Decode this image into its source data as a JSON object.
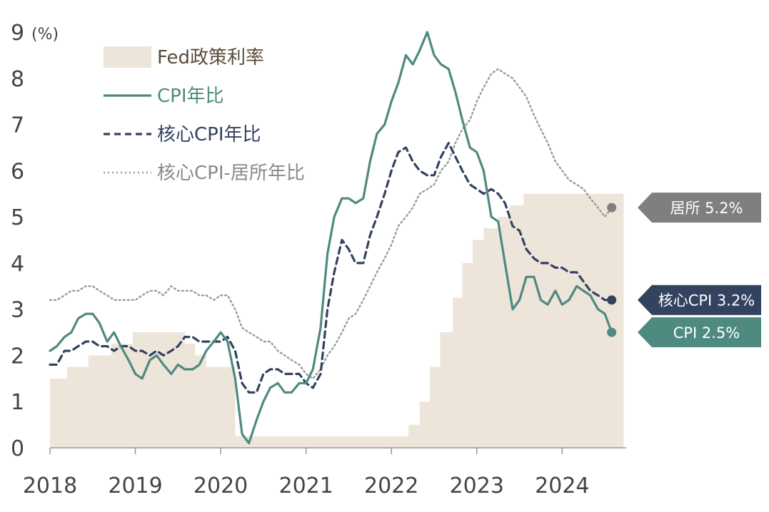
{
  "chart_data": {
    "type": "line",
    "ylabel": "(%)",
    "ylim": [
      0,
      9
    ],
    "y_ticks": [
      "0",
      "1",
      "2",
      "3",
      "4",
      "5",
      "6",
      "7",
      "8",
      "9"
    ],
    "x_ticks": [
      "2018",
      "2019",
      "2020",
      "2021",
      "2022",
      "2023",
      "2024"
    ],
    "xlim": [
      2018.0,
      2024.75
    ],
    "legend": [
      {
        "key": "fed",
        "label": "Fed政策利率",
        "color": "#ede4da",
        "style": "area",
        "text_color": "#5a4a3a"
      },
      {
        "key": "cpi",
        "label": "CPI年比",
        "color": "#4e8a80",
        "style": "solid",
        "text_color": "#4e8a80"
      },
      {
        "key": "core",
        "label": "核心CPI年比",
        "color": "#33425f",
        "style": "dashed",
        "text_color": "#33425f"
      },
      {
        "key": "shelter",
        "label": "核心CPI-居所年比",
        "color": "#9a9a9a",
        "style": "dotted",
        "text_color": "#8a8a8a"
      }
    ],
    "callouts": [
      {
        "key": "shelter",
        "label": "居所 5.2%",
        "value": 5.2,
        "color": "#7f7f7f"
      },
      {
        "key": "core",
        "label": "核心CPI 3.2%",
        "value": 3.2,
        "color": "#33425f"
      },
      {
        "key": "cpi",
        "label": "CPI 2.5%",
        "value": 2.5,
        "color": "#4e8a80"
      }
    ],
    "fed_steps": [
      {
        "x": 2018.0,
        "y": 1.5
      },
      {
        "x": 2018.2,
        "y": 1.75
      },
      {
        "x": 2018.45,
        "y": 2.0
      },
      {
        "x": 2018.72,
        "y": 2.25
      },
      {
        "x": 2018.97,
        "y": 2.5
      },
      {
        "x": 2019.58,
        "y": 2.25
      },
      {
        "x": 2019.7,
        "y": 2.0
      },
      {
        "x": 2019.83,
        "y": 1.75
      },
      {
        "x": 2020.17,
        "y": 0.25
      },
      {
        "x": 2022.2,
        "y": 0.5
      },
      {
        "x": 2022.33,
        "y": 1.0
      },
      {
        "x": 2022.45,
        "y": 1.75
      },
      {
        "x": 2022.57,
        "y": 2.5
      },
      {
        "x": 2022.72,
        "y": 3.25
      },
      {
        "x": 2022.83,
        "y": 4.0
      },
      {
        "x": 2022.95,
        "y": 4.5
      },
      {
        "x": 2023.08,
        "y": 4.75
      },
      {
        "x": 2023.25,
        "y": 5.0
      },
      {
        "x": 2023.38,
        "y": 5.25
      },
      {
        "x": 2023.55,
        "y": 5.5
      },
      {
        "x": 2024.72,
        "y": 5.5
      }
    ],
    "series": [
      {
        "key": "cpi",
        "name": "CPI年比",
        "points": [
          [
            2018.0,
            2.1
          ],
          [
            2018.08,
            2.2
          ],
          [
            2018.17,
            2.4
          ],
          [
            2018.25,
            2.5
          ],
          [
            2018.33,
            2.8
          ],
          [
            2018.42,
            2.9
          ],
          [
            2018.5,
            2.9
          ],
          [
            2018.58,
            2.7
          ],
          [
            2018.67,
            2.3
          ],
          [
            2018.75,
            2.5
          ],
          [
            2018.83,
            2.2
          ],
          [
            2018.92,
            1.9
          ],
          [
            2019.0,
            1.6
          ],
          [
            2019.08,
            1.5
          ],
          [
            2019.17,
            1.9
          ],
          [
            2019.25,
            2.0
          ],
          [
            2019.33,
            1.8
          ],
          [
            2019.42,
            1.6
          ],
          [
            2019.5,
            1.8
          ],
          [
            2019.58,
            1.7
          ],
          [
            2019.67,
            1.7
          ],
          [
            2019.75,
            1.8
          ],
          [
            2019.83,
            2.1
          ],
          [
            2019.92,
            2.3
          ],
          [
            2020.0,
            2.5
          ],
          [
            2020.08,
            2.3
          ],
          [
            2020.17,
            1.5
          ],
          [
            2020.25,
            0.3
          ],
          [
            2020.33,
            0.1
          ],
          [
            2020.42,
            0.6
          ],
          [
            2020.5,
            1.0
          ],
          [
            2020.58,
            1.3
          ],
          [
            2020.67,
            1.4
          ],
          [
            2020.75,
            1.2
          ],
          [
            2020.83,
            1.2
          ],
          [
            2020.92,
            1.4
          ],
          [
            2021.0,
            1.4
          ],
          [
            2021.08,
            1.7
          ],
          [
            2021.17,
            2.6
          ],
          [
            2021.25,
            4.2
          ],
          [
            2021.33,
            5.0
          ],
          [
            2021.42,
            5.4
          ],
          [
            2021.5,
            5.4
          ],
          [
            2021.58,
            5.3
          ],
          [
            2021.67,
            5.4
          ],
          [
            2021.75,
            6.2
          ],
          [
            2021.83,
            6.8
          ],
          [
            2021.92,
            7.0
          ],
          [
            2022.0,
            7.5
          ],
          [
            2022.08,
            7.9
          ],
          [
            2022.17,
            8.5
          ],
          [
            2022.25,
            8.3
          ],
          [
            2022.33,
            8.6
          ],
          [
            2022.42,
            9.0
          ],
          [
            2022.5,
            8.5
          ],
          [
            2022.58,
            8.3
          ],
          [
            2022.67,
            8.2
          ],
          [
            2022.75,
            7.7
          ],
          [
            2022.83,
            7.1
          ],
          [
            2022.92,
            6.5
          ],
          [
            2023.0,
            6.4
          ],
          [
            2023.08,
            6.0
          ],
          [
            2023.17,
            5.0
          ],
          [
            2023.25,
            4.9
          ],
          [
            2023.33,
            4.0
          ],
          [
            2023.42,
            3.0
          ],
          [
            2023.5,
            3.2
          ],
          [
            2023.58,
            3.7
          ],
          [
            2023.67,
            3.7
          ],
          [
            2023.75,
            3.2
          ],
          [
            2023.83,
            3.1
          ],
          [
            2023.92,
            3.4
          ],
          [
            2024.0,
            3.1
          ],
          [
            2024.08,
            3.2
          ],
          [
            2024.17,
            3.5
          ],
          [
            2024.25,
            3.4
          ],
          [
            2024.33,
            3.3
          ],
          [
            2024.42,
            3.0
          ],
          [
            2024.5,
            2.9
          ],
          [
            2024.58,
            2.5
          ]
        ]
      },
      {
        "key": "core",
        "name": "核心CPI年比",
        "points": [
          [
            2018.0,
            1.8
          ],
          [
            2018.08,
            1.8
          ],
          [
            2018.17,
            2.1
          ],
          [
            2018.25,
            2.1
          ],
          [
            2018.33,
            2.2
          ],
          [
            2018.42,
            2.3
          ],
          [
            2018.5,
            2.3
          ],
          [
            2018.58,
            2.2
          ],
          [
            2018.67,
            2.2
          ],
          [
            2018.75,
            2.1
          ],
          [
            2018.83,
            2.2
          ],
          [
            2018.92,
            2.2
          ],
          [
            2019.0,
            2.1
          ],
          [
            2019.08,
            2.1
          ],
          [
            2019.17,
            2.0
          ],
          [
            2019.25,
            2.1
          ],
          [
            2019.33,
            2.0
          ],
          [
            2019.42,
            2.1
          ],
          [
            2019.5,
            2.2
          ],
          [
            2019.58,
            2.4
          ],
          [
            2019.67,
            2.4
          ],
          [
            2019.75,
            2.3
          ],
          [
            2019.83,
            2.3
          ],
          [
            2019.92,
            2.3
          ],
          [
            2020.0,
            2.3
          ],
          [
            2020.08,
            2.4
          ],
          [
            2020.17,
            2.1
          ],
          [
            2020.25,
            1.4
          ],
          [
            2020.33,
            1.2
          ],
          [
            2020.42,
            1.2
          ],
          [
            2020.5,
            1.6
          ],
          [
            2020.58,
            1.7
          ],
          [
            2020.67,
            1.7
          ],
          [
            2020.75,
            1.6
          ],
          [
            2020.83,
            1.6
          ],
          [
            2020.92,
            1.6
          ],
          [
            2021.0,
            1.4
          ],
          [
            2021.08,
            1.3
          ],
          [
            2021.17,
            1.6
          ],
          [
            2021.25,
            3.0
          ],
          [
            2021.33,
            3.8
          ],
          [
            2021.42,
            4.5
          ],
          [
            2021.5,
            4.3
          ],
          [
            2021.58,
            4.0
          ],
          [
            2021.67,
            4.0
          ],
          [
            2021.75,
            4.6
          ],
          [
            2021.83,
            5.0
          ],
          [
            2021.92,
            5.5
          ],
          [
            2022.0,
            6.0
          ],
          [
            2022.08,
            6.4
          ],
          [
            2022.17,
            6.5
          ],
          [
            2022.25,
            6.2
          ],
          [
            2022.33,
            6.0
          ],
          [
            2022.42,
            5.9
          ],
          [
            2022.5,
            5.9
          ],
          [
            2022.58,
            6.3
          ],
          [
            2022.67,
            6.6
          ],
          [
            2022.75,
            6.3
          ],
          [
            2022.83,
            6.0
          ],
          [
            2022.92,
            5.7
          ],
          [
            2023.0,
            5.6
          ],
          [
            2023.08,
            5.5
          ],
          [
            2023.17,
            5.6
          ],
          [
            2023.25,
            5.5
          ],
          [
            2023.33,
            5.3
          ],
          [
            2023.42,
            4.8
          ],
          [
            2023.5,
            4.7
          ],
          [
            2023.58,
            4.3
          ],
          [
            2023.67,
            4.1
          ],
          [
            2023.75,
            4.0
          ],
          [
            2023.83,
            4.0
          ],
          [
            2023.92,
            3.9
          ],
          [
            2024.0,
            3.9
          ],
          [
            2024.08,
            3.8
          ],
          [
            2024.17,
            3.8
          ],
          [
            2024.25,
            3.6
          ],
          [
            2024.33,
            3.4
          ],
          [
            2024.42,
            3.3
          ],
          [
            2024.5,
            3.2
          ],
          [
            2024.58,
            3.2
          ]
        ]
      },
      {
        "key": "shelter",
        "name": "核心CPI-居所年比",
        "points": [
          [
            2018.0,
            3.2
          ],
          [
            2018.08,
            3.2
          ],
          [
            2018.17,
            3.3
          ],
          [
            2018.25,
            3.4
          ],
          [
            2018.33,
            3.4
          ],
          [
            2018.42,
            3.5
          ],
          [
            2018.5,
            3.5
          ],
          [
            2018.58,
            3.4
          ],
          [
            2018.67,
            3.3
          ],
          [
            2018.75,
            3.2
          ],
          [
            2018.83,
            3.2
          ],
          [
            2018.92,
            3.2
          ],
          [
            2019.0,
            3.2
          ],
          [
            2019.08,
            3.3
          ],
          [
            2019.17,
            3.4
          ],
          [
            2019.25,
            3.4
          ],
          [
            2019.33,
            3.3
          ],
          [
            2019.42,
            3.5
          ],
          [
            2019.5,
            3.4
          ],
          [
            2019.58,
            3.4
          ],
          [
            2019.67,
            3.4
          ],
          [
            2019.75,
            3.3
          ],
          [
            2019.83,
            3.3
          ],
          [
            2019.92,
            3.2
          ],
          [
            2020.0,
            3.3
          ],
          [
            2020.08,
            3.3
          ],
          [
            2020.17,
            3.0
          ],
          [
            2020.25,
            2.6
          ],
          [
            2020.33,
            2.5
          ],
          [
            2020.42,
            2.4
          ],
          [
            2020.5,
            2.3
          ],
          [
            2020.58,
            2.3
          ],
          [
            2020.67,
            2.1
          ],
          [
            2020.75,
            2.0
          ],
          [
            2020.83,
            1.9
          ],
          [
            2020.92,
            1.8
          ],
          [
            2021.0,
            1.6
          ],
          [
            2021.08,
            1.5
          ],
          [
            2021.17,
            1.7
          ],
          [
            2021.25,
            2.0
          ],
          [
            2021.33,
            2.2
          ],
          [
            2021.42,
            2.5
          ],
          [
            2021.5,
            2.8
          ],
          [
            2021.58,
            2.9
          ],
          [
            2021.67,
            3.2
          ],
          [
            2021.75,
            3.5
          ],
          [
            2021.83,
            3.8
          ],
          [
            2021.92,
            4.1
          ],
          [
            2022.0,
            4.4
          ],
          [
            2022.08,
            4.8
          ],
          [
            2022.17,
            5.0
          ],
          [
            2022.25,
            5.2
          ],
          [
            2022.33,
            5.5
          ],
          [
            2022.42,
            5.6
          ],
          [
            2022.5,
            5.7
          ],
          [
            2022.58,
            6.0
          ],
          [
            2022.67,
            6.2
          ],
          [
            2022.75,
            6.6
          ],
          [
            2022.83,
            6.9
          ],
          [
            2022.92,
            7.1
          ],
          [
            2023.0,
            7.5
          ],
          [
            2023.08,
            7.8
          ],
          [
            2023.17,
            8.1
          ],
          [
            2023.25,
            8.2
          ],
          [
            2023.33,
            8.1
          ],
          [
            2023.42,
            8.0
          ],
          [
            2023.5,
            7.8
          ],
          [
            2023.58,
            7.6
          ],
          [
            2023.67,
            7.2
          ],
          [
            2023.75,
            6.9
          ],
          [
            2023.83,
            6.6
          ],
          [
            2023.92,
            6.2
          ],
          [
            2024.0,
            6.0
          ],
          [
            2024.08,
            5.8
          ],
          [
            2024.17,
            5.7
          ],
          [
            2024.25,
            5.6
          ],
          [
            2024.33,
            5.4
          ],
          [
            2024.42,
            5.2
          ],
          [
            2024.5,
            5.0
          ],
          [
            2024.58,
            5.2
          ]
        ]
      }
    ]
  }
}
